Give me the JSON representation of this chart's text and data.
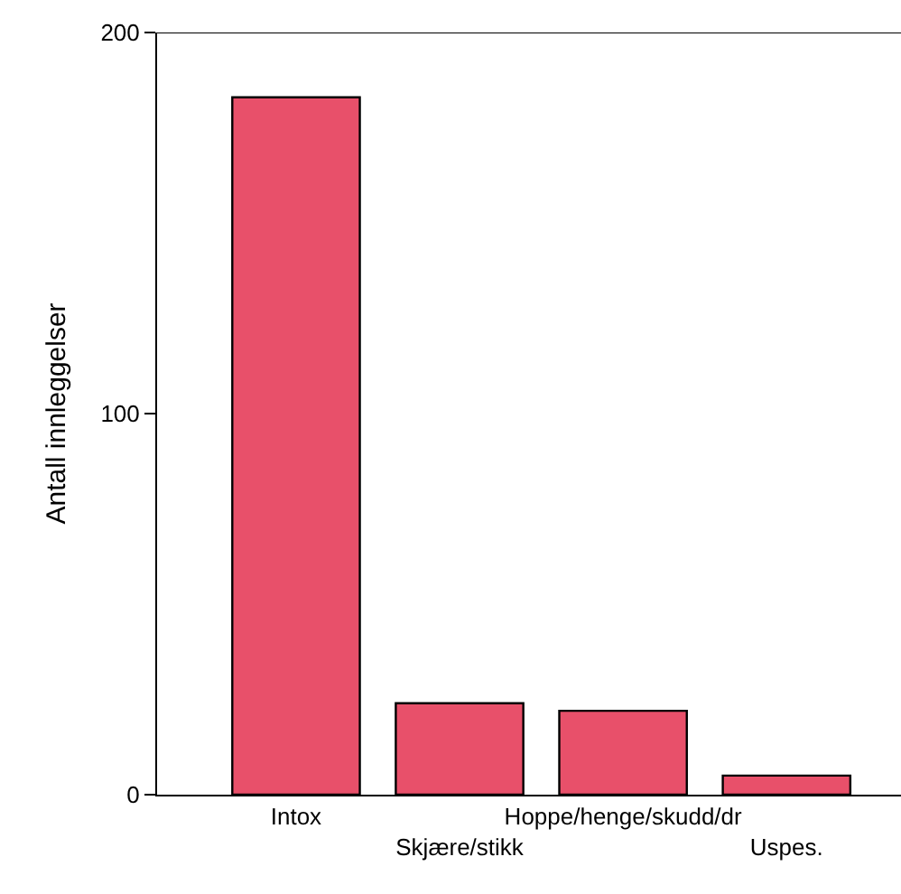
{
  "chart_data": {
    "type": "bar",
    "ylabel": "Antall innleggelser",
    "categories": [
      "Intox",
      "Skjære/stikk",
      "Hoppe/henge/skudd/dr",
      "Uspes."
    ],
    "values": [
      183,
      24,
      22,
      5
    ],
    "color": "#e8506a",
    "ylim": [
      0,
      200
    ],
    "yticks": [
      0,
      100,
      200
    ]
  }
}
